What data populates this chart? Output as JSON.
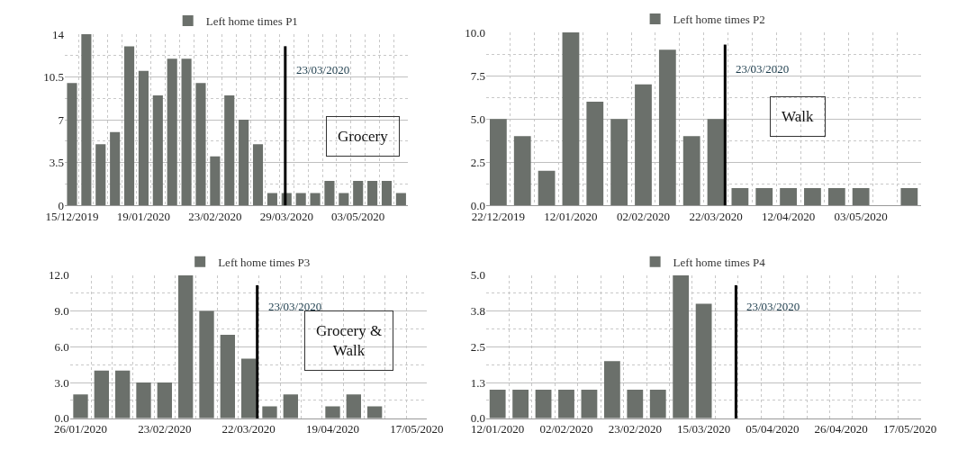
{
  "chart_data": [
    {
      "type": "bar",
      "categories": [
        "15/12/2019",
        null,
        null,
        null,
        null,
        "19/01/2020",
        null,
        null,
        null,
        null,
        "23/02/2020",
        null,
        null,
        null,
        null,
        "29/03/2020",
        null,
        null,
        null,
        null,
        "03/05/2020",
        null,
        null,
        null
      ],
      "series": [
        {
          "name": "Left home times P1",
          "color": "#6b706b",
          "values": [
            10,
            14,
            5,
            6,
            13,
            11,
            9,
            12,
            12,
            10,
            4,
            9,
            7,
            5,
            1,
            1,
            1,
            1,
            2,
            1,
            2,
            2,
            2,
            1
          ]
        }
      ],
      "ylim": [
        0,
        14
      ],
      "yticks": [
        0,
        3.5,
        7,
        10.5,
        14
      ],
      "grid": true,
      "legend": "top",
      "annotations": [
        "23/03/2020",
        "Grocery"
      ]
    },
    {
      "type": "bar",
      "categories": [
        "22/12/2019",
        null,
        null,
        "12/01/2020",
        null,
        null,
        "02/02/2020",
        null,
        null,
        "22/03/2020",
        null,
        null,
        "12/04/2020",
        null,
        null,
        "03/05/2020",
        null,
        null
      ],
      "series": [
        {
          "name": "Left home times P2",
          "color": "#6b706b",
          "values": [
            5,
            4,
            2,
            10,
            6,
            5,
            7,
            9,
            4,
            5,
            1,
            1,
            1,
            1,
            1,
            1,
            0,
            1
          ]
        }
      ],
      "ylim": [
        0,
        10
      ],
      "yticks": [
        {
          "value": 0,
          "label": "0.0"
        },
        {
          "value": 2.5,
          "label": "2.5"
        },
        {
          "value": 5,
          "label": "5.0"
        },
        {
          "value": 7.5,
          "label": "7.5"
        },
        {
          "value": 10,
          "label": "10.0"
        }
      ],
      "grid": true,
      "legend": "top",
      "annotations": [
        "23/03/2020",
        "Walk"
      ]
    },
    {
      "type": "bar",
      "categories": [
        "26/01/2020",
        null,
        null,
        null,
        "23/02/2020",
        null,
        null,
        null,
        "22/03/2020",
        null,
        null,
        null,
        "19/04/2020",
        null,
        null,
        null,
        "17/05/2020"
      ],
      "series": [
        {
          "name": "Left home times P3",
          "color": "#6b706b",
          "values": [
            2,
            4,
            4,
            3,
            3,
            12,
            9,
            7,
            5,
            1,
            2,
            0,
            1,
            2,
            1,
            0,
            0
          ]
        }
      ],
      "ylim": [
        0,
        12
      ],
      "yticks": [
        {
          "value": 0,
          "label": "0.0"
        },
        {
          "value": 3,
          "label": "3.0"
        },
        {
          "value": 6,
          "label": "6.0"
        },
        {
          "value": 9,
          "label": "9.0"
        },
        {
          "value": 12,
          "label": "12.0"
        }
      ],
      "grid": true,
      "legend": "top",
      "annotations": [
        "23/03/2020",
        "Grocery &\nWalk"
      ]
    },
    {
      "type": "bar",
      "categories": [
        "12/01/2020",
        null,
        null,
        "02/02/2020",
        null,
        null,
        "23/02/2020",
        null,
        null,
        "15/03/2020",
        null,
        null,
        "05/04/2020",
        null,
        null,
        "26/04/2020",
        null,
        null,
        "17/05/2020"
      ],
      "series": [
        {
          "name": "Left home times P4",
          "color": "#6b706b",
          "values": [
            1,
            1,
            1,
            1,
            1,
            2,
            1,
            1,
            5,
            4,
            0,
            0,
            0,
            0,
            0,
            0,
            0,
            0,
            0
          ]
        }
      ],
      "ylim": [
        0,
        5
      ],
      "yticks": [
        {
          "value": 0,
          "label": "0.0"
        },
        {
          "value": 1.25,
          "label": "1.3"
        },
        {
          "value": 2.5,
          "label": "2.5"
        },
        {
          "value": 3.75,
          "label": "3.8"
        },
        {
          "value": 5,
          "label": "5.0"
        }
      ],
      "grid": true,
      "legend": "top",
      "annotations": [
        "23/03/2020"
      ]
    }
  ]
}
